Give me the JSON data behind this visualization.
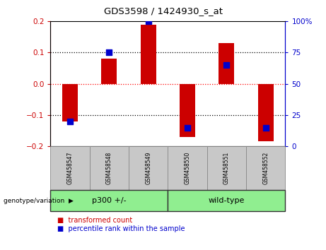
{
  "title": "GDS3598 / 1424930_s_at",
  "samples": [
    "GSM458547",
    "GSM458548",
    "GSM458549",
    "GSM458550",
    "GSM458551",
    "GSM458552"
  ],
  "transformed_count": [
    -0.12,
    0.08,
    0.19,
    -0.17,
    0.13,
    -0.185
  ],
  "percentile_rank": [
    20,
    75,
    100,
    15,
    65,
    15
  ],
  "ylim_left": [
    -0.2,
    0.2
  ],
  "ylim_right": [
    0,
    100
  ],
  "yticks_left": [
    -0.2,
    -0.1,
    0,
    0.1,
    0.2
  ],
  "yticks_right": [
    0,
    25,
    50,
    75,
    100
  ],
  "ytick_labels_right": [
    "0",
    "25",
    "50",
    "75",
    "100%"
  ],
  "bar_color": "#CC0000",
  "dot_color": "#0000CC",
  "bar_width": 0.4,
  "dot_size": 28,
  "groups": [
    {
      "label": "p300 +/-",
      "start": 0,
      "end": 3
    },
    {
      "label": "wild-type",
      "start": 3,
      "end": 6
    }
  ],
  "group_label_prefix": "genotype/variation",
  "legend_items": [
    {
      "label": "transformed count",
      "color": "#CC0000"
    },
    {
      "label": "percentile rank within the sample",
      "color": "#0000CC"
    }
  ],
  "axis_left_color": "#CC0000",
  "axis_right_color": "#0000CC",
  "group_box_color": "#C8C8C8",
  "group_bg_color": "#90EE90",
  "group_border_color": "#333333"
}
